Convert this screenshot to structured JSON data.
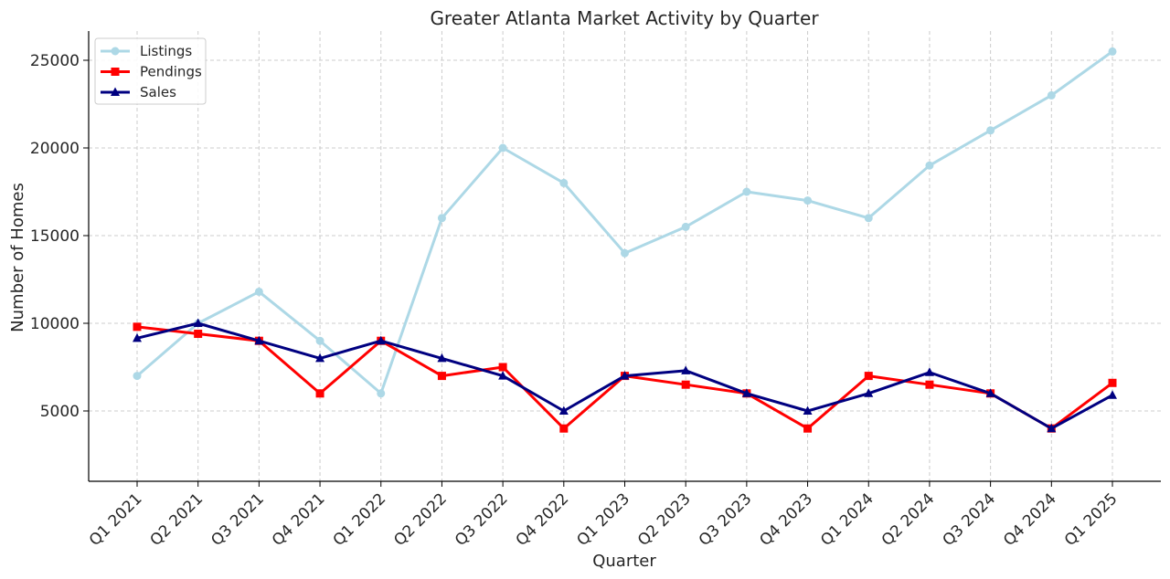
{
  "chart_data": {
    "type": "line",
    "title": "Greater Atlanta Market Activity by Quarter",
    "xlabel": "Quarter",
    "ylabel": "Number of Homes",
    "categories": [
      "Q1 2021",
      "Q2 2021",
      "Q3 2021",
      "Q4 2021",
      "Q1 2022",
      "Q2 2022",
      "Q3 2022",
      "Q4 2022",
      "Q1 2023",
      "Q2 2023",
      "Q3 2023",
      "Q4 2023",
      "Q1 2024",
      "Q2 2024",
      "Q3 2024",
      "Q4 2024",
      "Q1 2025"
    ],
    "yticks": [
      5000,
      10000,
      15000,
      20000,
      25000
    ],
    "ylim": [
      1000,
      26500
    ],
    "grid": true,
    "legend_position": "top-left",
    "series": [
      {
        "name": "Listings",
        "color": "#add8e6",
        "marker": "circle",
        "values": [
          7000,
          10000,
          11800,
          9000,
          6000,
          16000,
          20000,
          18000,
          14000,
          15500,
          17500,
          17000,
          16000,
          19000,
          21000,
          23000,
          25500
        ]
      },
      {
        "name": "Pendings",
        "color": "#ff0000",
        "marker": "square",
        "values": [
          9800,
          9400,
          9000,
          6000,
          9000,
          7000,
          7500,
          4000,
          7000,
          6500,
          6000,
          4000,
          7000,
          6500,
          6000,
          4000,
          6600
        ]
      },
      {
        "name": "Sales",
        "color": "#000080",
        "marker": "triangle",
        "values": [
          9150,
          10000,
          9000,
          8000,
          9000,
          8000,
          7000,
          5000,
          7000,
          7300,
          6000,
          5000,
          6000,
          7200,
          6000,
          4000,
          5900
        ]
      }
    ]
  }
}
